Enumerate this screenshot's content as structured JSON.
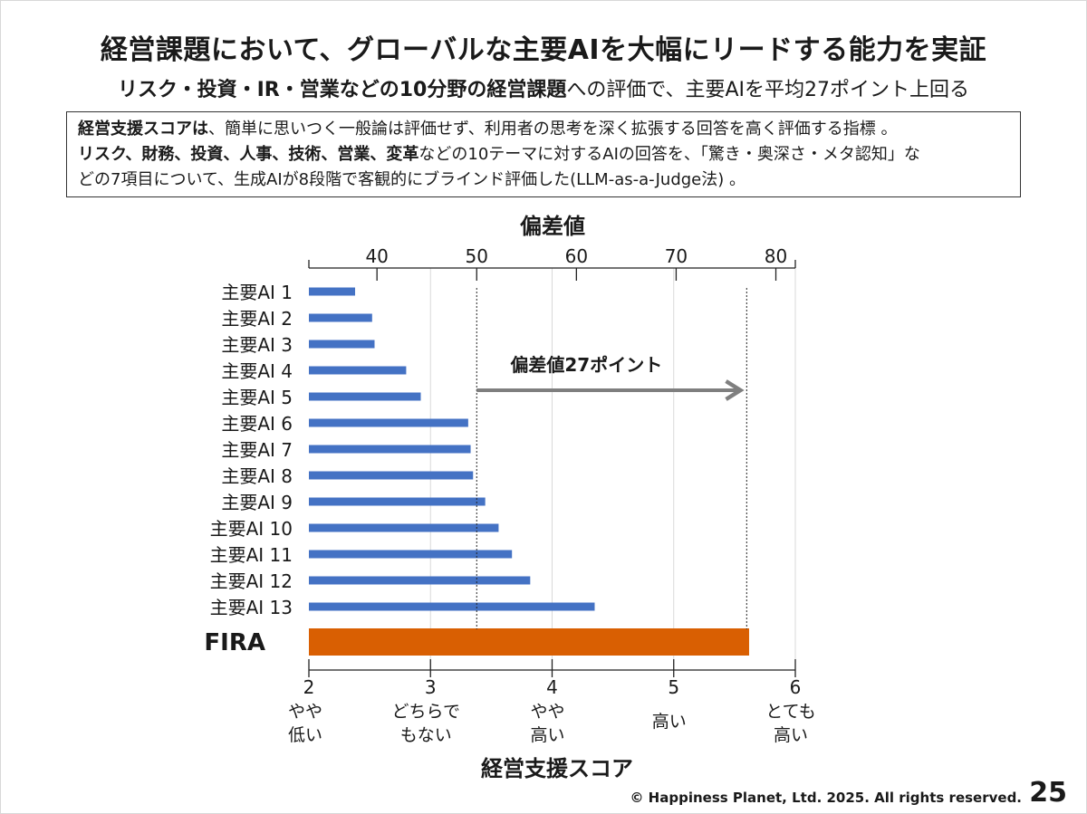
{
  "header": {
    "title": "経営課題において、グローバルな主要AIを大幅にリードする能力を実証",
    "subtitle_bold": "リスク・投資・IR・営業などの10分野の経営課題",
    "subtitle_rest": "への評価で、主要AIを平均27ポイント上回る"
  },
  "description": {
    "line1_bold": "経営支援スコアは",
    "line1_rest": "、簡単に思いつく一般論は評価せず、利用者の思考を深く拡張する回答を高く評価する指標 。",
    "line2_bold_1": "リスク、財務、投資、人事、技術、営業、変革",
    "line2_rest": "などの10テーマに対するAIの回答を、「驚き・奥深さ・メタ認知」な",
    "line3": "どの7項目について、生成AIが8段階で客観的にブラインド評価した(LLM-as-a-Judge法) 。"
  },
  "chart_data": {
    "type": "bar",
    "orientation": "horizontal",
    "categories": [
      "主要AI 1",
      "主要AI 2",
      "主要AI 3",
      "主要AI 4",
      "主要AI 5",
      "主要AI 6",
      "主要AI 7",
      "主要AI 8",
      "主要AI 9",
      "主要AI 10",
      "主要AI 11",
      "主要AI 12",
      "主要AI 13",
      "FIRA"
    ],
    "values": [
      2.38,
      2.52,
      2.54,
      2.8,
      2.92,
      3.31,
      3.33,
      3.35,
      3.45,
      3.56,
      3.67,
      3.82,
      4.35,
      5.62
    ],
    "bar_colors": [
      "#4472c4",
      "#4472c4",
      "#4472c4",
      "#4472c4",
      "#4472c4",
      "#4472c4",
      "#4472c4",
      "#4472c4",
      "#4472c4",
      "#4472c4",
      "#4472c4",
      "#4472c4",
      "#4472c4",
      "#d95f02"
    ],
    "xlabel": "経営支援スコア",
    "xlim": [
      2,
      6
    ],
    "x_ticks": [
      2,
      3,
      4,
      5,
      6
    ],
    "x_tick_labels": [
      [
        "やや",
        "低い"
      ],
      [
        "どちらで",
        "もない"
      ],
      [
        "やや",
        "高い"
      ],
      [
        "高い"
      ],
      [
        "とても",
        "高い"
      ]
    ],
    "secondary_axis": {
      "label": "偏差値",
      "ticks": [
        40,
        50,
        60,
        70,
        80
      ],
      "score_at_ticks": [
        2.56,
        3.38,
        4.2,
        5.02,
        5.84
      ]
    },
    "reference_lines": [
      3.38,
      5.6
    ],
    "annotation": {
      "text": "偏差値27ポイント",
      "from": 3.38,
      "to": 5.6
    },
    "grid": true,
    "colors": {
      "main": "#4472c4",
      "highlight": "#d95f02",
      "arrow": "#7f7f7f",
      "grid": "#d9d9d9"
    }
  },
  "footer": {
    "copyright": "© Happiness Planet, Ltd. 2025. All rights reserved.",
    "page": "25"
  }
}
